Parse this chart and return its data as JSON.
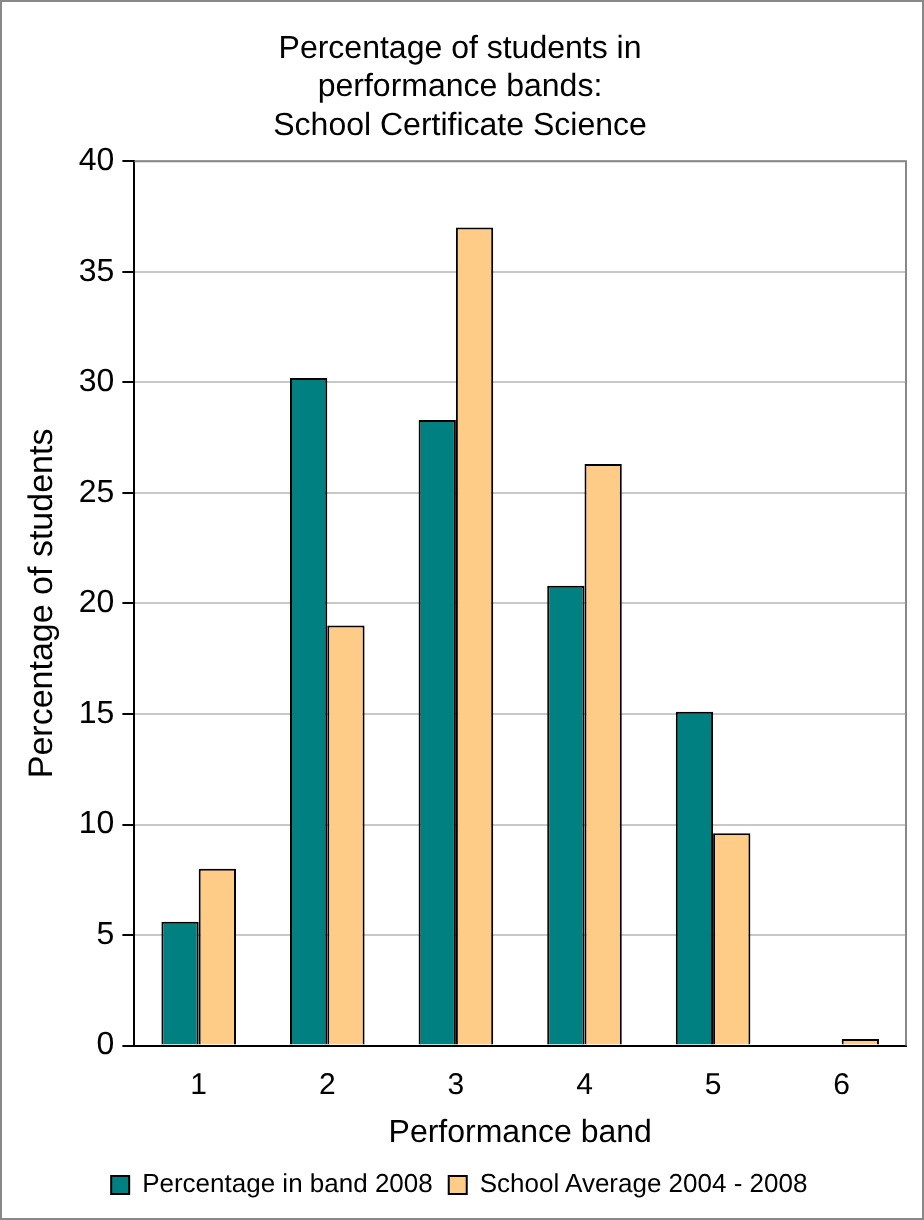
{
  "chart_data": {
    "type": "bar",
    "title": "Percentage of students in performance bands: School Certificate Science",
    "xlabel": "Performance band",
    "ylabel": "Percentage of students",
    "categories": [
      "1",
      "2",
      "3",
      "4",
      "5",
      "6"
    ],
    "series": [
      {
        "name": "Percentage in band 2008",
        "color": "#008080",
        "values": [
          5.6,
          30.2,
          28.3,
          20.8,
          15.1,
          0
        ]
      },
      {
        "name": "School Average 2004 - 2008",
        "color": "#ffcc88",
        "values": [
          8.0,
          19.0,
          37.0,
          26.3,
          9.6,
          0.3
        ]
      }
    ],
    "ylim": [
      0,
      40
    ],
    "yticks": [
      0,
      5,
      10,
      15,
      20,
      25,
      30,
      35,
      40
    ],
    "grid": "y",
    "legend": "bottom"
  }
}
